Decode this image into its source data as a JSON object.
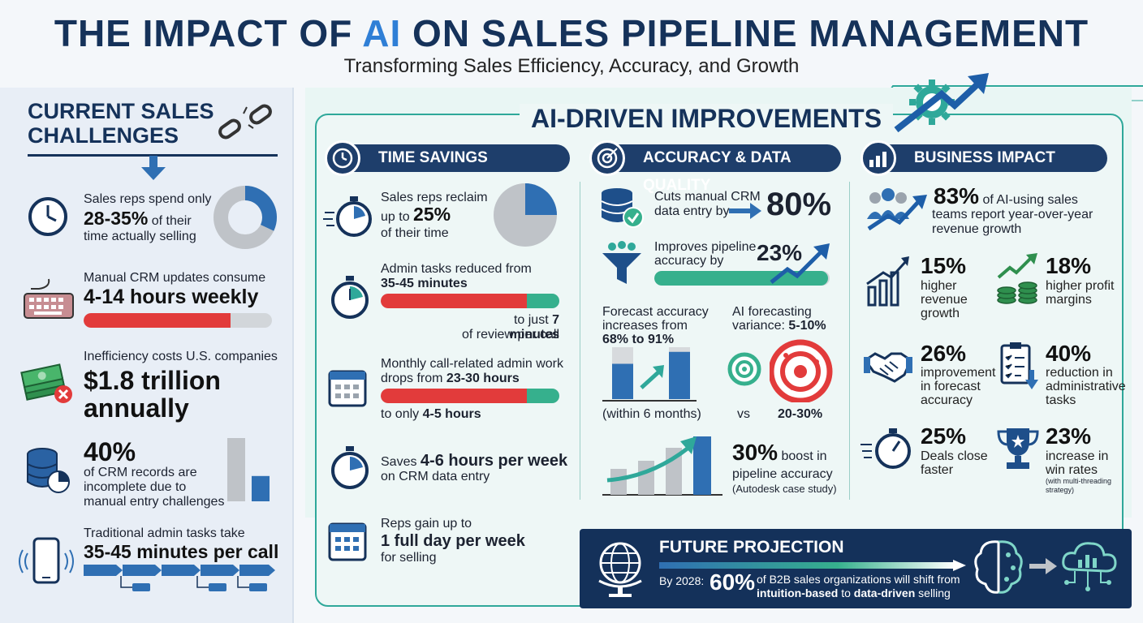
{
  "header": {
    "title_pre": "THE IMPACT OF ",
    "title_ai": "AI",
    "title_post": " ON SALES PIPELINE MANAGEMENT",
    "subtitle": "Transforming Sales Efficiency, Accuracy, and Growth"
  },
  "left": {
    "heading_line1": "CURRENT SALES",
    "heading_line2": "CHALLENGES",
    "item1": {
      "pre": "Sales reps spend only",
      "num": "28-35%",
      "post": "of their",
      "post2": "time actually selling",
      "share": 0.32
    },
    "item2": {
      "pre": "Manual CRM updates consume",
      "num": "4-14 hours weekly",
      "fill": 0.78
    },
    "item3": {
      "pre": "Inefficiency costs U.S. companies",
      "num": "$1.8 trillion",
      "num2": "annually"
    },
    "item4": {
      "num": "40%",
      "post": "of CRM records are",
      "post2": "incomplete due to",
      "post3": "manual entry challenges",
      "bar_complete": 1.0,
      "bar_incomplete": 0.4
    },
    "item5": {
      "pre": "Traditional admin tasks take",
      "num": "35-45 minutes per call"
    }
  },
  "mid": {
    "heading": "AI-DRIVEN IMPROVEMENTS",
    "time": {
      "head": "TIME SAVINGS",
      "t1_pre": "Sales reps reclaim",
      "t1_upto": "up to",
      "t1_num": "25%",
      "t1_post": "of their time",
      "t1_share": 0.25,
      "t2_pre": "Admin tasks reduced from",
      "t2_num": "35-45 minutes",
      "t2_post_pre": "to just",
      "t2_post_num": "7 minutes",
      "t2_post2": "of review per call",
      "t2_fill": 0.82,
      "t3_pre": "Monthly call-related admin work",
      "t3_pre2": "drops from",
      "t3_num": "23-30 hours",
      "t3_post_pre": "to only",
      "t3_post_num": "4-5 hours",
      "t3_fill": 0.82,
      "t4_pre": "Saves",
      "t4_num": "4-6 hours per week",
      "t4_post": "on CRM data entry",
      "t5_pre": "Reps gain up to",
      "t5_num": "1 full day per week",
      "t5_post": "for selling"
    },
    "accuracy": {
      "head": "ACCURACY & DATA QUALITY",
      "a1_text": "Cuts manual CRM",
      "a1_text2": "data entry by",
      "a1_num": "80%",
      "a2_text": "Improves pipeline",
      "a2_text2": "accuracy by",
      "a2_num": "23%",
      "a2_fill": 0.23,
      "a3_text": "Forecast accuracy",
      "a3_text2": "increases from",
      "a3_num": "68% to 91%",
      "a3_from": 68,
      "a3_to": 91,
      "a3_note": "(within 6 months)",
      "a4_text": "AI forecasting",
      "a4_text2": "variance:",
      "a4_num": "5-10%",
      "a4_vs": "vs",
      "a4_vs_num": "20-30%",
      "a5_num": "30%",
      "a5_text": "boost in",
      "a5_text2": "pipeline accuracy",
      "a5_note": "(Autodesk case study)"
    },
    "business": {
      "head": "BUSINESS IMPACT",
      "b1_num": "83%",
      "b1_text": "of AI-using sales",
      "b1_text2": "teams report year-over-year",
      "b1_text3": "revenue growth",
      "b2_num": "15%",
      "b2_l1": "higher",
      "b2_l2": "revenue",
      "b2_l3": "growth",
      "b3_num": "18%",
      "b3_l1": "higher profit",
      "b3_l2": "margins",
      "b4_num": "26%",
      "b4_l1": "improvement",
      "b4_l2": "in forecast",
      "b4_l3": "accuracy",
      "b5_num": "40%",
      "b5_l1": "reduction in",
      "b5_l2": "administrative",
      "b5_l3": "tasks",
      "b6_num": "25%",
      "b6_l1": "Deals close",
      "b6_l2": "faster",
      "b7_num": "23%",
      "b7_l1": "increase in",
      "b7_l2": "win rates",
      "b7_l3": "(with multi-threading",
      "b7_l4": "strategy)"
    }
  },
  "future": {
    "title": "FUTURE PROJECTION",
    "by": "By 2028:",
    "num": "60%",
    "text1": "of B2B sales organizations will shift from",
    "text2_bold1": "intuition-based",
    "text2_mid": " to ",
    "text2_bold2": "data-driven",
    "text2_end": " selling"
  },
  "colors": {
    "navy": "#15325a",
    "blue": "#2f6fb3",
    "teal": "#2fa89a",
    "red": "#e23b3b",
    "green": "#36b08d",
    "gray": "#bfc3c8"
  }
}
